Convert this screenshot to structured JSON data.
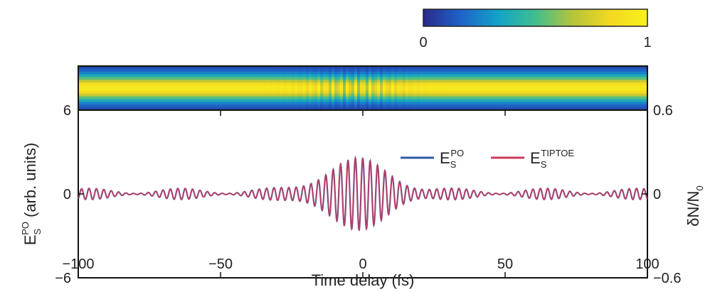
{
  "colorbar": {
    "min_label": "0",
    "max_label": "1",
    "colors": [
      "#2a2a8a",
      "#1f62c8",
      "#12a3c8",
      "#3fbe8f",
      "#b6c43a",
      "#f3d822",
      "#f8f21b"
    ]
  },
  "chart_data": {
    "type": "line",
    "xlabel": "Time delay (fs)",
    "ylabel_left": "E",
    "ylabel_left_sub": "S",
    "ylabel_left_sup": "PO",
    "ylabel_left_unit": "(arb. units)",
    "ylabel_right": "δN/N",
    "ylabel_right_sub": "0",
    "xlim": [
      -100,
      100
    ],
    "ylim_left": [
      -6,
      6
    ],
    "ylim_right": [
      -0.6,
      0.6
    ],
    "xticks": [
      "-100",
      "-50",
      "0",
      "50",
      "100"
    ],
    "yticks_left": [
      "6",
      "0",
      "-6"
    ],
    "yticks_right": [
      "0.6",
      "0",
      "-0.6"
    ],
    "legend_position": "top-right",
    "series": [
      {
        "name": "E",
        "name_sub": "S",
        "name_sup": "PO",
        "color": "#2f5aa8",
        "pulse_center": -2,
        "pulse_width": 15,
        "pulse_amplitude": 2.2,
        "period_fs": 2.6,
        "background_amplitude": 0.4
      },
      {
        "name": "E",
        "name_sub": "S",
        "name_sup": "TIPTOE",
        "color": "#c83a5a",
        "pulse_center": -2,
        "pulse_width": 15,
        "pulse_amplitude": 2.2,
        "period_fs": 2.6,
        "background_amplitude": 0.4
      }
    ],
    "heatmap_strip": {
      "value_range": [
        0,
        1
      ],
      "modulation_center": -3,
      "modulation_width": 15
    }
  }
}
